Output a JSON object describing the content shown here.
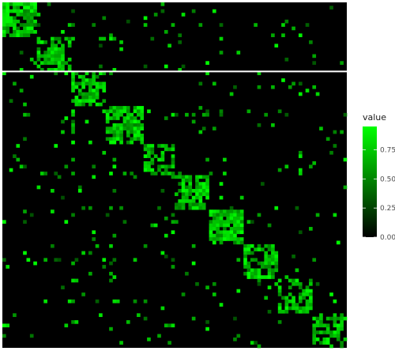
{
  "chart_data": {
    "type": "heatmap",
    "title": "",
    "xlabel": "",
    "ylabel": "",
    "matrix_size": 100,
    "blocks": [
      {
        "start": 0,
        "end": 10,
        "density": 0.85
      },
      {
        "start": 10,
        "end": 20,
        "density": 0.6
      },
      {
        "start": 20,
        "end": 30,
        "density": 0.75
      },
      {
        "start": 30,
        "end": 41,
        "density": 0.78
      },
      {
        "start": 41,
        "end": 50,
        "density": 0.6
      },
      {
        "start": 50,
        "end": 60,
        "density": 0.7
      },
      {
        "start": 60,
        "end": 70,
        "density": 0.8
      },
      {
        "start": 70,
        "end": 80,
        "density": 0.65
      },
      {
        "start": 80,
        "end": 90,
        "density": 0.6
      },
      {
        "start": 90,
        "end": 100,
        "density": 0.6
      }
    ],
    "background_density": 0.035,
    "highlight_row": 20,
    "color_scale": {
      "low": "#000000",
      "high": "#00ff00",
      "min": 0,
      "max": 1
    },
    "legend": {
      "title": "value",
      "position": "right",
      "ticks": [
        "0.75",
        "0.50",
        "0.25",
        "0.00"
      ],
      "tick_values": [
        0.75,
        0.5,
        0.25,
        0.0
      ]
    },
    "grid": false
  },
  "colors": {
    "panel_background": "#000000",
    "highlight_line": "#ffffff",
    "cell_high": "#00ff00"
  }
}
